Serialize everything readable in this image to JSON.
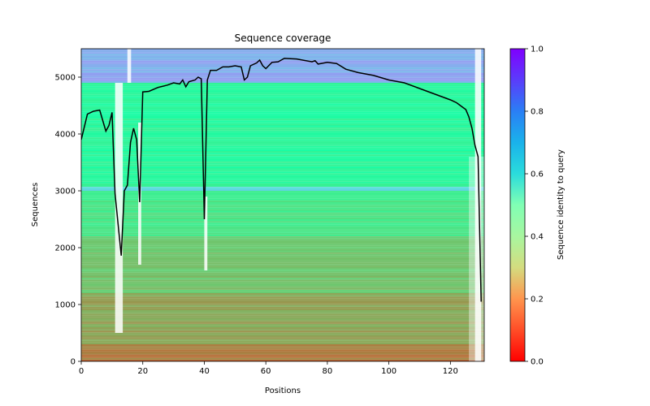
{
  "chart_data": {
    "type": "heatmap",
    "title": "Sequence coverage",
    "xlabel": "Positions",
    "ylabel": "Sequences",
    "xlim": [
      0,
      131
    ],
    "ylim": [
      0,
      5500
    ],
    "x_ticks": [
      0,
      20,
      40,
      60,
      80,
      100,
      120
    ],
    "y_ticks": [
      0,
      1000,
      2000,
      3000,
      4000,
      5000
    ],
    "colorbar": {
      "label": "Sequence identity to query",
      "colormap": "rainbow_r",
      "range": [
        0,
        1
      ],
      "ticks": [
        0.0,
        0.2,
        0.4,
        0.6,
        0.8,
        1.0
      ]
    },
    "identity_bands": [
      {
        "from": 0,
        "to": 300,
        "identity": 0.16
      },
      {
        "from": 300,
        "to": 1200,
        "identity": 0.22
      },
      {
        "from": 1200,
        "to": 2200,
        "identity": 0.28
      },
      {
        "from": 2200,
        "to": 3000,
        "identity": 0.36
      },
      {
        "from": 3000,
        "to": 3070,
        "identity": 0.7
      },
      {
        "from": 3070,
        "to": 4900,
        "identity": 0.42
      },
      {
        "from": 4900,
        "to": 5500,
        "identity": 0.76
      }
    ],
    "coverage_line": {
      "color": "#000000",
      "x": [
        0,
        2,
        4,
        6,
        8,
        9,
        10,
        11,
        13,
        14,
        15,
        16,
        17,
        18,
        19,
        20,
        22,
        25,
        28,
        30,
        32,
        33,
        34,
        35,
        37,
        38,
        39,
        40,
        41,
        42,
        44,
        46,
        48,
        50,
        52,
        53,
        54,
        55,
        57,
        58,
        59,
        60,
        62,
        64,
        66,
        70,
        75,
        76,
        77,
        80,
        83,
        86,
        90,
        95,
        100,
        105,
        110,
        115,
        120,
        122,
        124,
        125,
        126,
        127,
        128,
        129,
        130
      ],
      "y": [
        3900,
        4350,
        4400,
        4420,
        4050,
        4150,
        4380,
        2950,
        1860,
        3000,
        3100,
        3850,
        4100,
        3900,
        2800,
        4740,
        4750,
        4820,
        4860,
        4900,
        4880,
        4950,
        4830,
        4920,
        4950,
        5000,
        4970,
        2500,
        4950,
        5120,
        5120,
        5180,
        5180,
        5200,
        5180,
        4950,
        5000,
        5200,
        5250,
        5300,
        5200,
        5150,
        5260,
        5270,
        5330,
        5320,
        5270,
        5290,
        5230,
        5260,
        5240,
        5140,
        5080,
        5030,
        4950,
        4900,
        4800,
        4700,
        4600,
        4550,
        4470,
        4430,
        4300,
        4100,
        3800,
        3600,
        1050
      ]
    }
  }
}
